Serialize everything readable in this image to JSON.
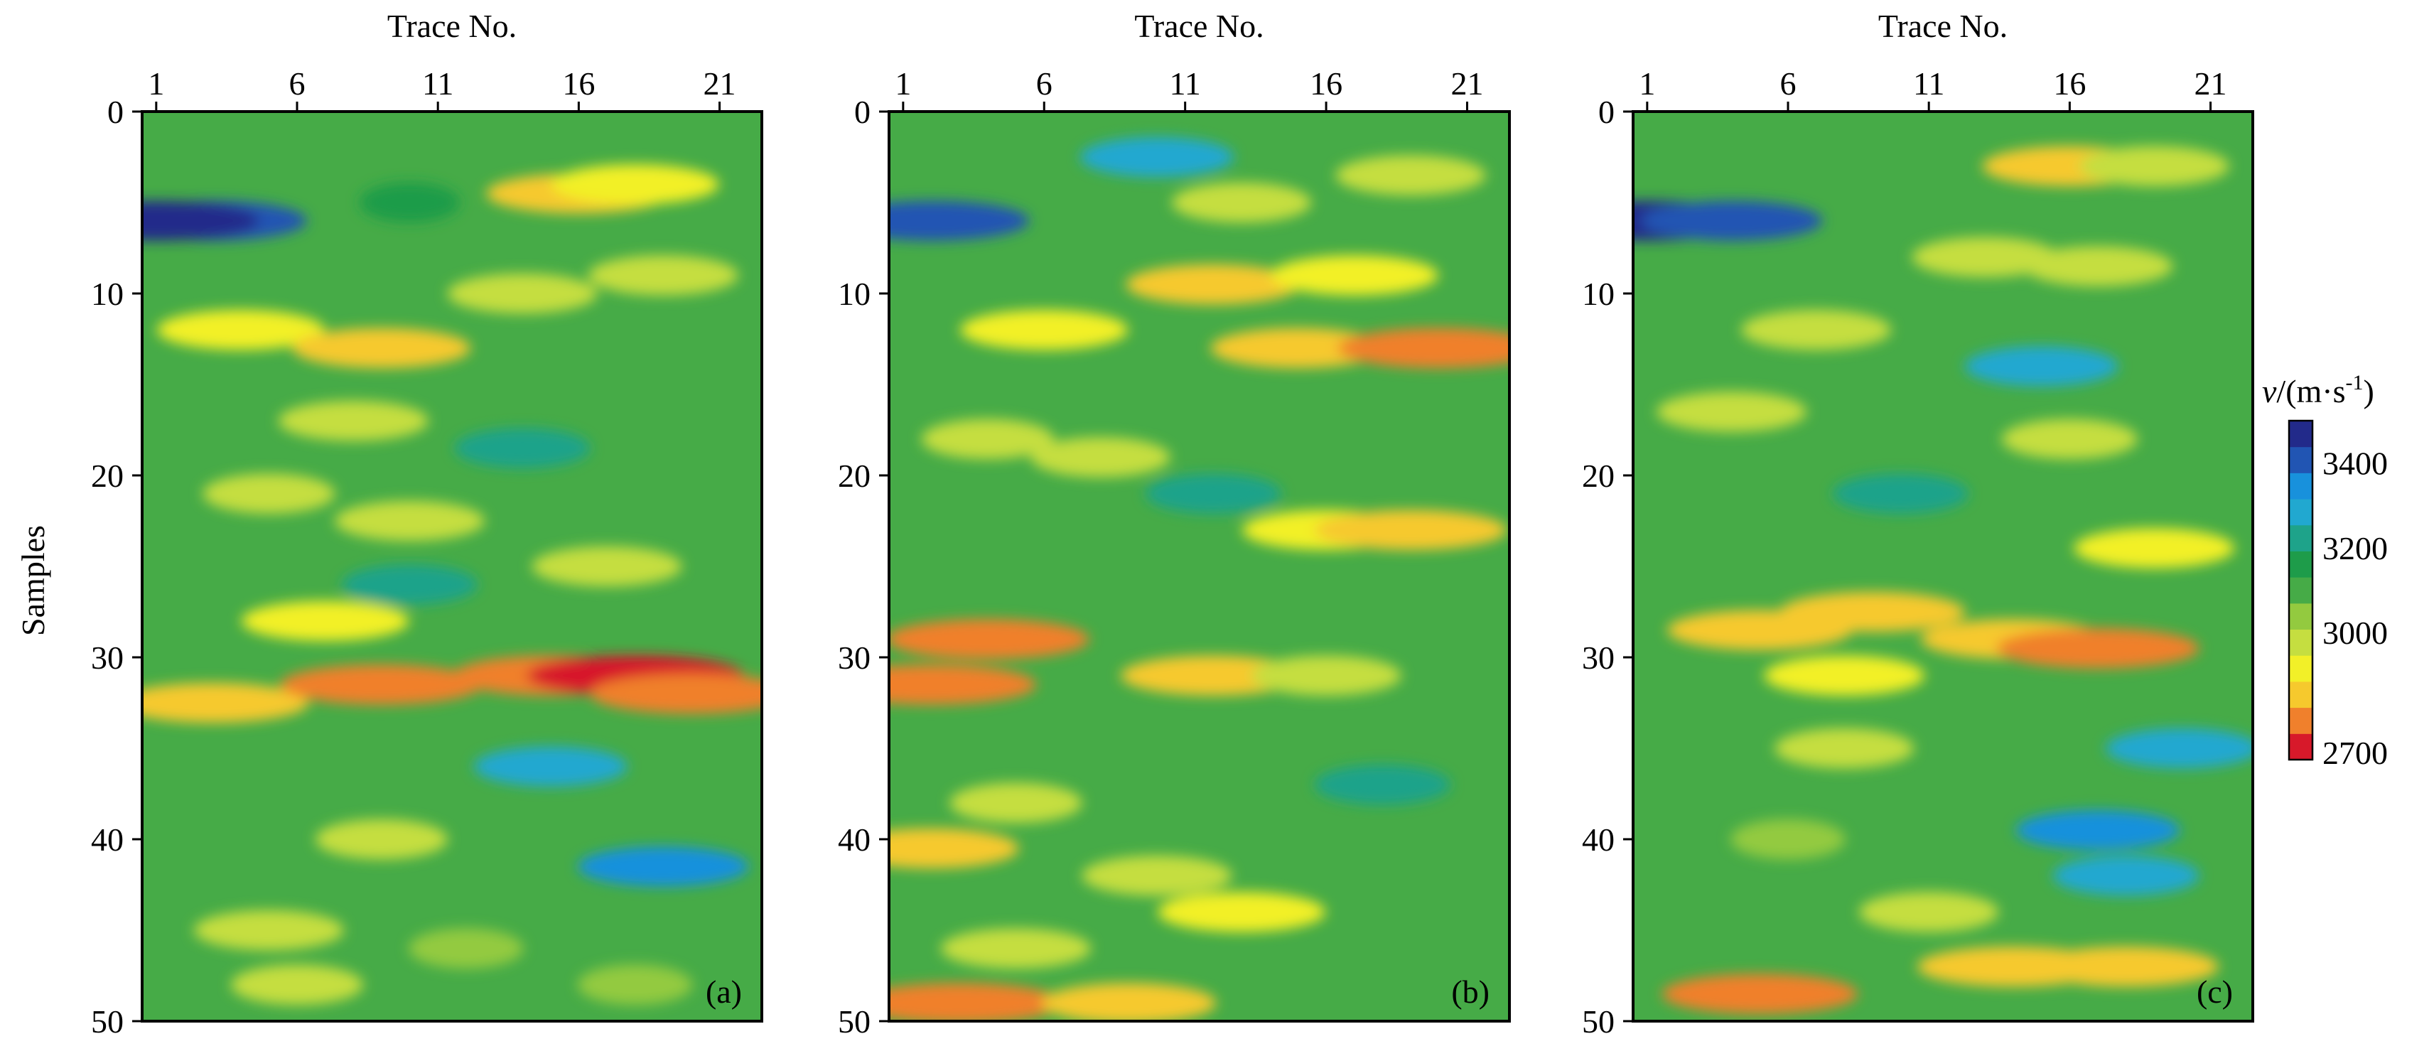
{
  "chart_data": {
    "type": "heatmap",
    "panels": [
      {
        "label": "(a)",
        "xlabel": "Trace No.",
        "ylabel": "Samples",
        "x_range": [
          1,
          22
        ],
        "y_range": [
          0,
          50
        ],
        "x_ticks": [
          1,
          6,
          11,
          16,
          21
        ],
        "y_ticks": [
          0,
          10,
          20,
          30,
          40,
          50
        ],
        "features": [
          {
            "x": 3,
            "y": 6,
            "v": 3400
          },
          {
            "x": 1,
            "y": 6,
            "v": 3450
          },
          {
            "x": 10,
            "y": 5,
            "v": 3150
          },
          {
            "x": 16,
            "y": 4.5,
            "v": 2850
          },
          {
            "x": 18,
            "y": 4,
            "v": 2900
          },
          {
            "x": 4,
            "y": 12,
            "v": 2900
          },
          {
            "x": 9,
            "y": 13,
            "v": 2870
          },
          {
            "x": 14,
            "y": 10,
            "v": 2950
          },
          {
            "x": 19,
            "y": 9,
            "v": 2950
          },
          {
            "x": 8,
            "y": 17,
            "v": 2950
          },
          {
            "x": 14,
            "y": 18.5,
            "v": 3250
          },
          {
            "x": 10,
            "y": 22.5,
            "v": 2950
          },
          {
            "x": 5,
            "y": 21,
            "v": 3000
          },
          {
            "x": 17,
            "y": 25,
            "v": 2950
          },
          {
            "x": 10,
            "y": 26,
            "v": 3250
          },
          {
            "x": 7,
            "y": 28,
            "v": 2900
          },
          {
            "x": 3,
            "y": 32.5,
            "v": 2830
          },
          {
            "x": 9,
            "y": 31.5,
            "v": 2800
          },
          {
            "x": 15,
            "y": 31,
            "v": 2820
          },
          {
            "x": 18,
            "y": 31,
            "v": 2760
          },
          {
            "x": 20,
            "y": 32,
            "v": 2800
          },
          {
            "x": 15,
            "y": 36,
            "v": 3300
          },
          {
            "x": 9,
            "y": 40,
            "v": 3000
          },
          {
            "x": 19,
            "y": 41.5,
            "v": 3350
          },
          {
            "x": 5,
            "y": 45,
            "v": 2950
          },
          {
            "x": 12,
            "y": 46,
            "v": 3050
          },
          {
            "x": 6,
            "y": 48,
            "v": 3000
          },
          {
            "x": 18,
            "y": 48,
            "v": 3050
          }
        ]
      },
      {
        "label": "(b)",
        "xlabel": "Trace No.",
        "ylabel": "",
        "x_range": [
          1,
          22
        ],
        "y_range": [
          0,
          50
        ],
        "x_ticks": [
          1,
          6,
          11,
          16,
          21
        ],
        "y_ticks": [
          0,
          10,
          20,
          30,
          40,
          50
        ],
        "features": [
          {
            "x": 2,
            "y": 6,
            "v": 3420
          },
          {
            "x": 10,
            "y": 2.5,
            "v": 3300
          },
          {
            "x": 13,
            "y": 5,
            "v": 2980
          },
          {
            "x": 19,
            "y": 3.5,
            "v": 2950
          },
          {
            "x": 12,
            "y": 9.5,
            "v": 2880
          },
          {
            "x": 17,
            "y": 9,
            "v": 2900
          },
          {
            "x": 6,
            "y": 12,
            "v": 2900
          },
          {
            "x": 15,
            "y": 13,
            "v": 2880
          },
          {
            "x": 20,
            "y": 13,
            "v": 2800
          },
          {
            "x": 8,
            "y": 19,
            "v": 2980
          },
          {
            "x": 12,
            "y": 21,
            "v": 3250
          },
          {
            "x": 4,
            "y": 18,
            "v": 3000
          },
          {
            "x": 16,
            "y": 23,
            "v": 2900
          },
          {
            "x": 19,
            "y": 23,
            "v": 2830
          },
          {
            "x": 4,
            "y": 29,
            "v": 2800
          },
          {
            "x": 2,
            "y": 31.5,
            "v": 2780
          },
          {
            "x": 12,
            "y": 31,
            "v": 2850
          },
          {
            "x": 16,
            "y": 31,
            "v": 2950
          },
          {
            "x": 18,
            "y": 37,
            "v": 3250
          },
          {
            "x": 5,
            "y": 38,
            "v": 3000
          },
          {
            "x": 10,
            "y": 42,
            "v": 2950
          },
          {
            "x": 2,
            "y": 40.5,
            "v": 2880
          },
          {
            "x": 13,
            "y": 44,
            "v": 2900
          },
          {
            "x": 5,
            "y": 46,
            "v": 2950
          },
          {
            "x": 3,
            "y": 49,
            "v": 2780
          },
          {
            "x": 9,
            "y": 49,
            "v": 2880
          }
        ]
      },
      {
        "label": "(c)",
        "xlabel": "Trace No.",
        "ylabel": "",
        "x_range": [
          1,
          22
        ],
        "y_range": [
          0,
          50
        ],
        "x_ticks": [
          1,
          6,
          11,
          16,
          21
        ],
        "y_ticks": [
          0,
          10,
          20,
          30,
          40,
          50
        ],
        "features": [
          {
            "x": 1,
            "y": 6,
            "v": 3450
          },
          {
            "x": 4,
            "y": 6,
            "v": 3380
          },
          {
            "x": 16,
            "y": 3,
            "v": 2880
          },
          {
            "x": 19,
            "y": 3,
            "v": 2950
          },
          {
            "x": 13,
            "y": 8,
            "v": 2960
          },
          {
            "x": 17,
            "y": 8.5,
            "v": 2950
          },
          {
            "x": 7,
            "y": 12,
            "v": 2950
          },
          {
            "x": 15,
            "y": 14,
            "v": 3300
          },
          {
            "x": 4,
            "y": 16.5,
            "v": 2950
          },
          {
            "x": 16,
            "y": 18,
            "v": 2990
          },
          {
            "x": 10,
            "y": 21,
            "v": 3250
          },
          {
            "x": 19,
            "y": 24,
            "v": 2920
          },
          {
            "x": 5,
            "y": 28.5,
            "v": 2850
          },
          {
            "x": 9,
            "y": 27.5,
            "v": 2850
          },
          {
            "x": 14,
            "y": 29,
            "v": 2850
          },
          {
            "x": 17,
            "y": 29.5,
            "v": 2800
          },
          {
            "x": 8,
            "y": 31,
            "v": 2920
          },
          {
            "x": 8,
            "y": 35,
            "v": 2980
          },
          {
            "x": 20,
            "y": 35,
            "v": 3300
          },
          {
            "x": 17,
            "y": 39.5,
            "v": 3330
          },
          {
            "x": 18,
            "y": 42,
            "v": 3280
          },
          {
            "x": 6,
            "y": 40,
            "v": 3050
          },
          {
            "x": 11,
            "y": 44,
            "v": 2980
          },
          {
            "x": 5,
            "y": 48.5,
            "v": 2820
          },
          {
            "x": 14,
            "y": 47,
            "v": 2830
          },
          {
            "x": 18,
            "y": 47,
            "v": 2850
          }
        ]
      }
    ],
    "colorbar": {
      "label": "v/(m·s-1)",
      "ticks": [
        3400,
        3200,
        3000,
        2700
      ],
      "range": [
        2700,
        3500
      ],
      "colors": [
        "#d7192a",
        "#f0802c",
        "#f6c92d",
        "#f2f028",
        "#c5de40",
        "#93ca3f",
        "#46ab47",
        "#1e9c4a",
        "#1ea38a",
        "#21a8d0",
        "#1891dc",
        "#2155b3",
        "#222a8a"
      ]
    },
    "background_value": 3120
  }
}
